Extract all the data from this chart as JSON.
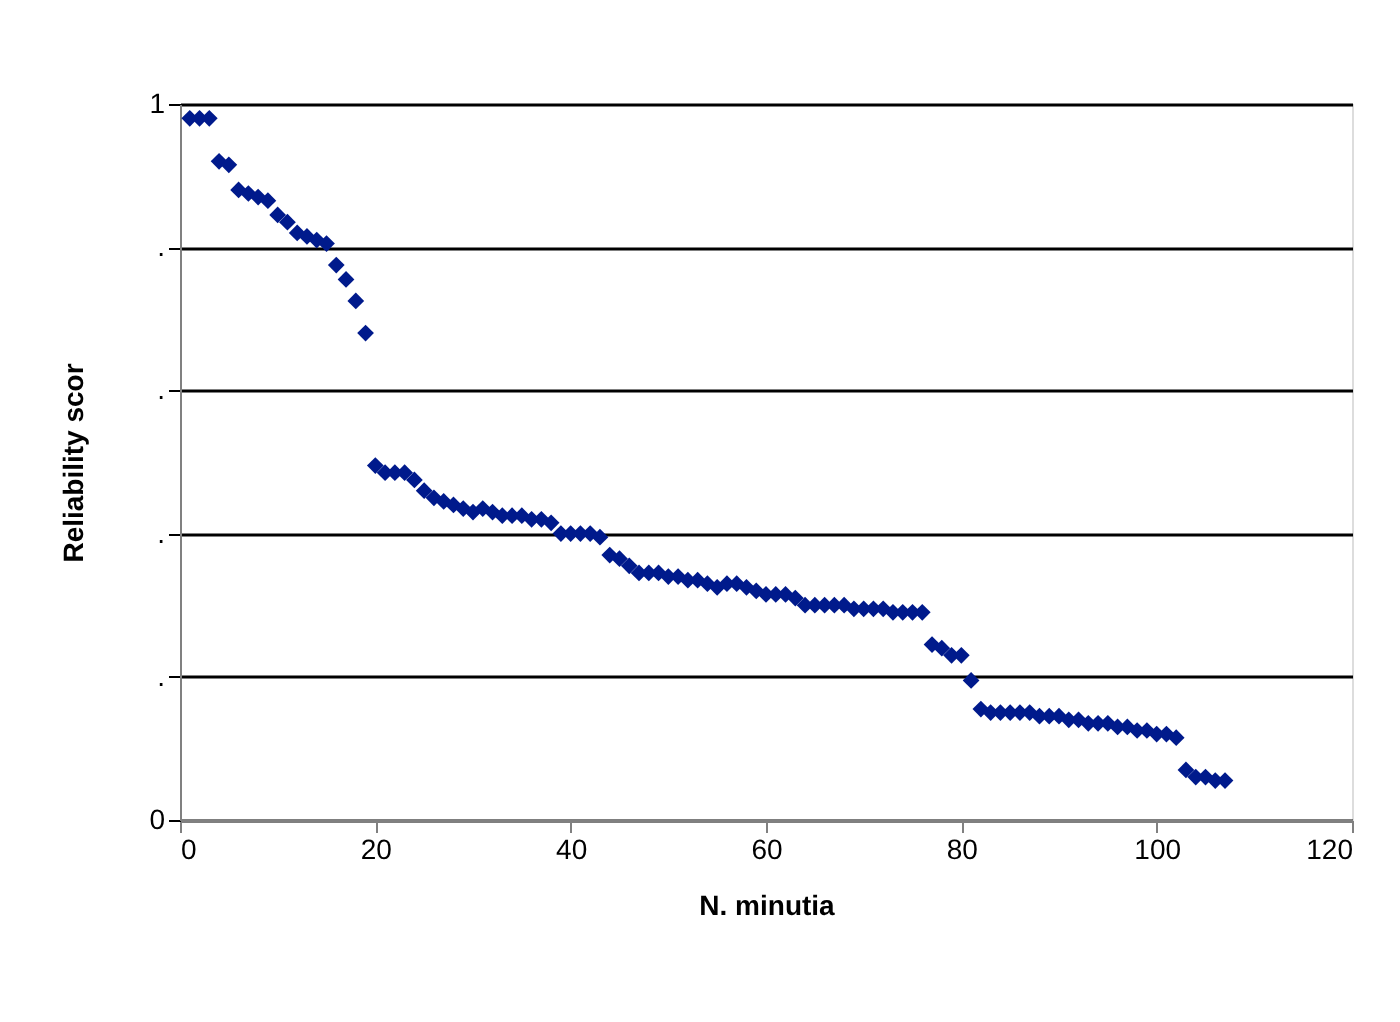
{
  "chart_data": {
    "type": "scatter",
    "xlabel": "N. minutia",
    "ylabel": "Reliability scor",
    "x": [
      1,
      2,
      3,
      4,
      5,
      6,
      7,
      8,
      9,
      10,
      11,
      12,
      13,
      14,
      15,
      16,
      17,
      18,
      19,
      20,
      21,
      22,
      23,
      24,
      25,
      26,
      27,
      28,
      29,
      30,
      31,
      32,
      33,
      34,
      35,
      36,
      37,
      38,
      39,
      40,
      41,
      42,
      43,
      44,
      45,
      46,
      47,
      48,
      49,
      50,
      51,
      52,
      53,
      54,
      55,
      56,
      57,
      58,
      59,
      60,
      61,
      62,
      63,
      64,
      65,
      66,
      67,
      68,
      69,
      70,
      71,
      72,
      73,
      74,
      75,
      76,
      77,
      78,
      79,
      80,
      81,
      82,
      83,
      84,
      85,
      86,
      87,
      88,
      89,
      90,
      91,
      92,
      93,
      94,
      95,
      96,
      97,
      98,
      99,
      100,
      101,
      102,
      103,
      104,
      105,
      106,
      107
    ],
    "series": [
      {
        "color": "#001a8c",
        "values": [
          0.98,
          0.98,
          0.98,
          0.92,
          0.915,
          0.88,
          0.875,
          0.87,
          0.865,
          0.845,
          0.835,
          0.82,
          0.815,
          0.81,
          0.805,
          0.775,
          0.755,
          0.725,
          0.68,
          0.495,
          0.485,
          0.485,
          0.485,
          0.475,
          0.46,
          0.45,
          0.445,
          0.44,
          0.435,
          0.43,
          0.435,
          0.43,
          0.425,
          0.425,
          0.425,
          0.42,
          0.42,
          0.415,
          0.4,
          0.4,
          0.4,
          0.4,
          0.395,
          0.37,
          0.365,
          0.355,
          0.345,
          0.345,
          0.345,
          0.34,
          0.34,
          0.335,
          0.335,
          0.33,
          0.325,
          0.33,
          0.33,
          0.325,
          0.32,
          0.315,
          0.315,
          0.315,
          0.31,
          0.3,
          0.3,
          0.3,
          0.3,
          0.3,
          0.295,
          0.295,
          0.295,
          0.295,
          0.29,
          0.29,
          0.29,
          0.29,
          0.245,
          0.24,
          0.23,
          0.23,
          0.195,
          0.155,
          0.15,
          0.15,
          0.15,
          0.15,
          0.15,
          0.145,
          0.145,
          0.145,
          0.14,
          0.14,
          0.135,
          0.135,
          0.135,
          0.13,
          0.13,
          0.125,
          0.125,
          0.12,
          0.12,
          0.115,
          0.07,
          0.06,
          0.06,
          0.055,
          0.055
        ]
      }
    ],
    "xlim": [
      0,
      120
    ],
    "xticks": [
      0,
      20,
      40,
      60,
      80,
      100,
      120
    ],
    "ylim": [
      0,
      1
    ],
    "yticks": [
      0,
      {
        "value": 0.2,
        "label": "."
      },
      {
        "value": 0.4,
        "label": "."
      },
      {
        "value": 0.6,
        "label": "."
      },
      {
        "value": 0.8,
        "label": "."
      },
      1
    ],
    "grid": "y",
    "marker": "diamond",
    "legend": false
  }
}
